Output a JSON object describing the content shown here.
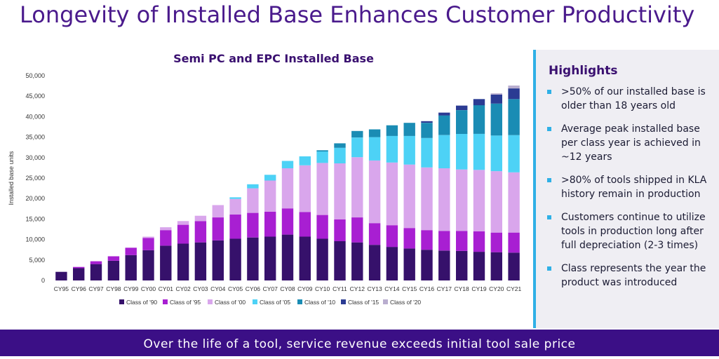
{
  "slide": {
    "title": "Longevity of Installed Base Enhances Customer Productivity",
    "footer": "Over the life of a tool, service revenue exceeds initial tool sale price"
  },
  "highlights": {
    "title": "Highlights",
    "items": [
      ">50% of our installed base is older than 18 years old",
      "Average peak installed base per class year is achieved in ~12 years",
      ">80% of tools shipped in KLA history remain in production",
      "Customers continue to utilize tools in production long after full depreciation (2-3 times)",
      "Class represents the year the product was introduced"
    ]
  },
  "chart_data": {
    "type": "bar",
    "stacked": true,
    "title": "Semi PC and EPC Installed Base",
    "ylabel": "Installed base units",
    "xlabel": "",
    "ylim": [
      0,
      50000
    ],
    "yticks": [
      "0",
      "5,000",
      "10,000",
      "15,000",
      "20,000",
      "25,000",
      "30,000",
      "35,000",
      "40,000",
      "45,000",
      "50,000"
    ],
    "grid": false,
    "legend_position": "bottom",
    "categories": [
      "CY95",
      "CY96",
      "CY97",
      "CY98",
      "CY99",
      "CY00",
      "CY01",
      "CY02",
      "CY03",
      "CY04",
      "CY05",
      "CY06",
      "CY07",
      "CY08",
      "CY09",
      "CY10",
      "CY11",
      "CY12",
      "CY13",
      "CY14",
      "CY15",
      "CY16",
      "CY17",
      "CY18",
      "CY19",
      "CY20",
      "CY21"
    ],
    "series": [
      {
        "name": "Class of '90",
        "color": "#36116b",
        "values": [
          2100,
          3000,
          4000,
          4800,
          6200,
          7400,
          8500,
          9000,
          9300,
          9800,
          10200,
          10500,
          10700,
          11200,
          10700,
          10200,
          9600,
          9300,
          8700,
          8200,
          7800,
          7500,
          7300,
          7200,
          7000,
          6900,
          6800
        ]
      },
      {
        "name": "Class of '95",
        "color": "#a81fd2",
        "values": [
          0,
          300,
          700,
          1100,
          1800,
          3000,
          3800,
          4600,
          5200,
          5600,
          5900,
          6000,
          6100,
          6400,
          6000,
          5800,
          5300,
          6100,
          5300,
          5300,
          5000,
          4800,
          4800,
          4900,
          5000,
          4800,
          4900
        ]
      },
      {
        "name": "Class of '00",
        "color": "#d9a6ec",
        "values": [
          0,
          0,
          0,
          0,
          0,
          300,
          700,
          900,
          1300,
          3000,
          3800,
          6000,
          7600,
          9800,
          11400,
          12700,
          13700,
          14700,
          15300,
          15300,
          15500,
          15300,
          15300,
          15000,
          15000,
          15000,
          14700
        ]
      },
      {
        "name": "Class of '05",
        "color": "#4dd2f6",
        "values": [
          0,
          0,
          0,
          0,
          0,
          0,
          0,
          0,
          0,
          0,
          400,
          1000,
          1400,
          1800,
          2200,
          2800,
          3800,
          4800,
          5700,
          6500,
          7000,
          7200,
          8100,
          8700,
          8800,
          8700,
          9100
        ]
      },
      {
        "name": "Class of '10",
        "color": "#1a8cb4",
        "values": [
          0,
          0,
          0,
          0,
          0,
          0,
          0,
          0,
          0,
          0,
          0,
          0,
          0,
          0,
          0,
          300,
          1100,
          1600,
          1900,
          2600,
          3200,
          3700,
          4800,
          5800,
          7000,
          7800,
          8800
        ]
      },
      {
        "name": "Class of '15",
        "color": "#2b3b93",
        "values": [
          0,
          0,
          0,
          0,
          0,
          0,
          0,
          0,
          0,
          0,
          0,
          0,
          0,
          0,
          0,
          0,
          0,
          0,
          0,
          0,
          0,
          400,
          700,
          1100,
          1500,
          2200,
          2600
        ]
      },
      {
        "name": "Class of '20",
        "color": "#b9aecf",
        "values": [
          0,
          0,
          0,
          0,
          0,
          0,
          0,
          0,
          0,
          0,
          0,
          0,
          0,
          0,
          0,
          0,
          0,
          0,
          0,
          0,
          0,
          0,
          0,
          0,
          0,
          300,
          700
        ]
      }
    ]
  }
}
